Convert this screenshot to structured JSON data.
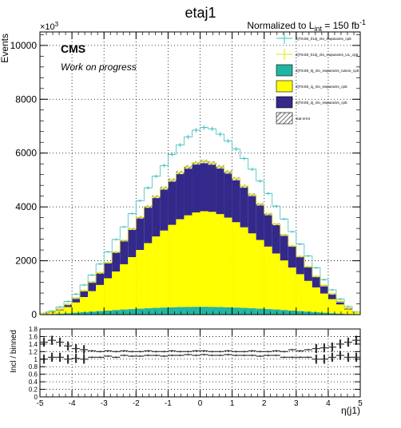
{
  "chart_data": [
    {
      "type": "bar",
      "title": "etaj1",
      "lumi_text": "Normalized to L",
      "lumi_sub": "int",
      "lumi_value": " = 150 fb",
      "lumi_sup": "-1",
      "ylabel": "Events",
      "y_multiplier": "×10",
      "y_multiplier_exp": "3",
      "cms_label": "CMS",
      "cms_sublabel": "Work on progress",
      "xlim": [
        -5,
        5
      ],
      "ylim": [
        0,
        10500
      ],
      "x_ticks": [
        "-5",
        "-4",
        "-3",
        "-2",
        "-1",
        "0",
        "1",
        "2",
        "3",
        "4",
        "5"
      ],
      "y_ticks": [
        "0",
        "2000",
        "4000",
        "6000",
        "8000",
        "10000"
      ],
      "grid": true,
      "legend_position": "top-right",
      "colors": {
        "bkg_0j": "#21b5a1",
        "bkg_1j": "#ffff00",
        "bkg_2j": "#33298a",
        "sig_cp5": "#3dbfbf",
        "sig_ul": "#e6e600"
      },
      "legend": [
        {
          "label": "ZjTmS8_012j_nlo_ewparams_cp5",
          "style": "line",
          "color": "#3dbfbf"
        },
        {
          "label": "ZjTmS8_012j_nlo_ewparams_UL_cp5",
          "style": "line",
          "color": "#e6e600"
        },
        {
          "label": "ZjTmS8_0j_nlo_ewparams_tuison_cp5",
          "style": "fill",
          "color": "#21b5a1"
        },
        {
          "label": "ZjTmS8_1j_nlo_ewparams_cp5",
          "style": "fill",
          "color": "#ffff00"
        },
        {
          "label": "ZjTmS8_2j_nlo_ewparams_cp5",
          "style": "fill",
          "color": "#33298a"
        },
        {
          "label": "stat error",
          "style": "hatch",
          "color": "#555555"
        }
      ],
      "bin_edges_start": -5,
      "bin_width": 0.25,
      "stack_0j": [
        10,
        20,
        35,
        50,
        70,
        90,
        110,
        130,
        150,
        170,
        190,
        205,
        220,
        235,
        250,
        260,
        270,
        280,
        285,
        290,
        290,
        285,
        280,
        270,
        260,
        250,
        235,
        220,
        205,
        190,
        170,
        150,
        130,
        110,
        90,
        70,
        50,
        35,
        20,
        10
      ],
      "stack_1j": [
        20,
        50,
        120,
        230,
        380,
        560,
        760,
        970,
        1200,
        1430,
        1680,
        1930,
        2180,
        2420,
        2650,
        2860,
        3060,
        3260,
        3400,
        3500,
        3550,
        3530,
        3450,
        3330,
        3170,
        2990,
        2780,
        2550,
        2320,
        2080,
        1840,
        1600,
        1370,
        1140,
        920,
        710,
        520,
        340,
        170,
        60
      ],
      "stack_2j": [
        10,
        20,
        50,
        100,
        160,
        240,
        340,
        450,
        580,
        720,
        880,
        1050,
        1210,
        1360,
        1480,
        1580,
        1670,
        1740,
        1800,
        1850,
        1850,
        1820,
        1760,
        1700,
        1620,
        1530,
        1440,
        1330,
        1210,
        1090,
        950,
        800,
        660,
        530,
        410,
        300,
        200,
        110,
        50,
        15
      ],
      "signal_cp5": [
        50,
        130,
        280,
        490,
        760,
        1100,
        1470,
        1880,
        2330,
        2790,
        3260,
        3750,
        4230,
        4710,
        5140,
        5540,
        5950,
        6300,
        6600,
        6850,
        6950,
        6900,
        6700,
        6450,
        6150,
        5800,
        5400,
        4960,
        4500,
        4030,
        3550,
        3080,
        2620,
        2180,
        1740,
        1300,
        920,
        580,
        300,
        100
      ],
      "signal_ul": [
        40,
        95,
        210,
        385,
        615,
        895,
        1215,
        1555,
        1935,
        2325,
        2755,
        3190,
        3615,
        4020,
        4385,
        4705,
        5005,
        5285,
        5490,
        5645,
        5700,
        5640,
        5495,
        5305,
        5055,
        4775,
        4460,
        4105,
        3740,
        3365,
        2965,
        2555,
        2165,
        1785,
        1425,
        1085,
        775,
        490,
        245,
        90
      ]
    },
    {
      "type": "scatter",
      "ylabel": "Incl / binned",
      "xlabel": "η(j1)",
      "xlim": [
        -5,
        5
      ],
      "ylim": [
        0,
        1.8
      ],
      "x_ticks": [
        "-5",
        "-4",
        "-3",
        "-2",
        "-1",
        "0",
        "1",
        "2",
        "3",
        "4",
        "5"
      ],
      "y_ticks": [
        "0",
        "0.2",
        "0.4",
        "0.6",
        "0.8",
        "1",
        "1.2",
        "1.4",
        "1.6",
        "1.8"
      ],
      "grid": true,
      "ratio_upper": [
        1.45,
        1.5,
        1.45,
        1.35,
        1.28,
        1.25,
        1.22,
        1.2,
        1.22,
        1.2,
        1.22,
        1.2,
        1.2,
        1.22,
        1.2,
        1.2,
        1.22,
        1.2,
        1.2,
        1.22,
        1.22,
        1.2,
        1.2,
        1.22,
        1.2,
        1.2,
        1.22,
        1.2,
        1.2,
        1.22,
        1.2,
        1.25,
        1.22,
        1.25,
        1.28,
        1.3,
        1.32,
        1.4,
        1.45,
        1.5
      ],
      "ratio_lower": [
        1.0,
        1.05,
        1.05,
        1.0,
        1.02,
        1.0,
        1.05,
        1.05,
        1.08,
        1.05,
        1.1,
        1.08,
        1.08,
        1.1,
        1.1,
        1.08,
        1.1,
        1.1,
        1.12,
        1.1,
        1.12,
        1.1,
        1.1,
        1.12,
        1.1,
        1.1,
        1.1,
        1.08,
        1.1,
        1.1,
        1.05,
        1.05,
        1.05,
        1.05,
        1.0,
        1.0,
        1.05,
        1.1,
        1.05,
        1.05
      ]
    }
  ]
}
